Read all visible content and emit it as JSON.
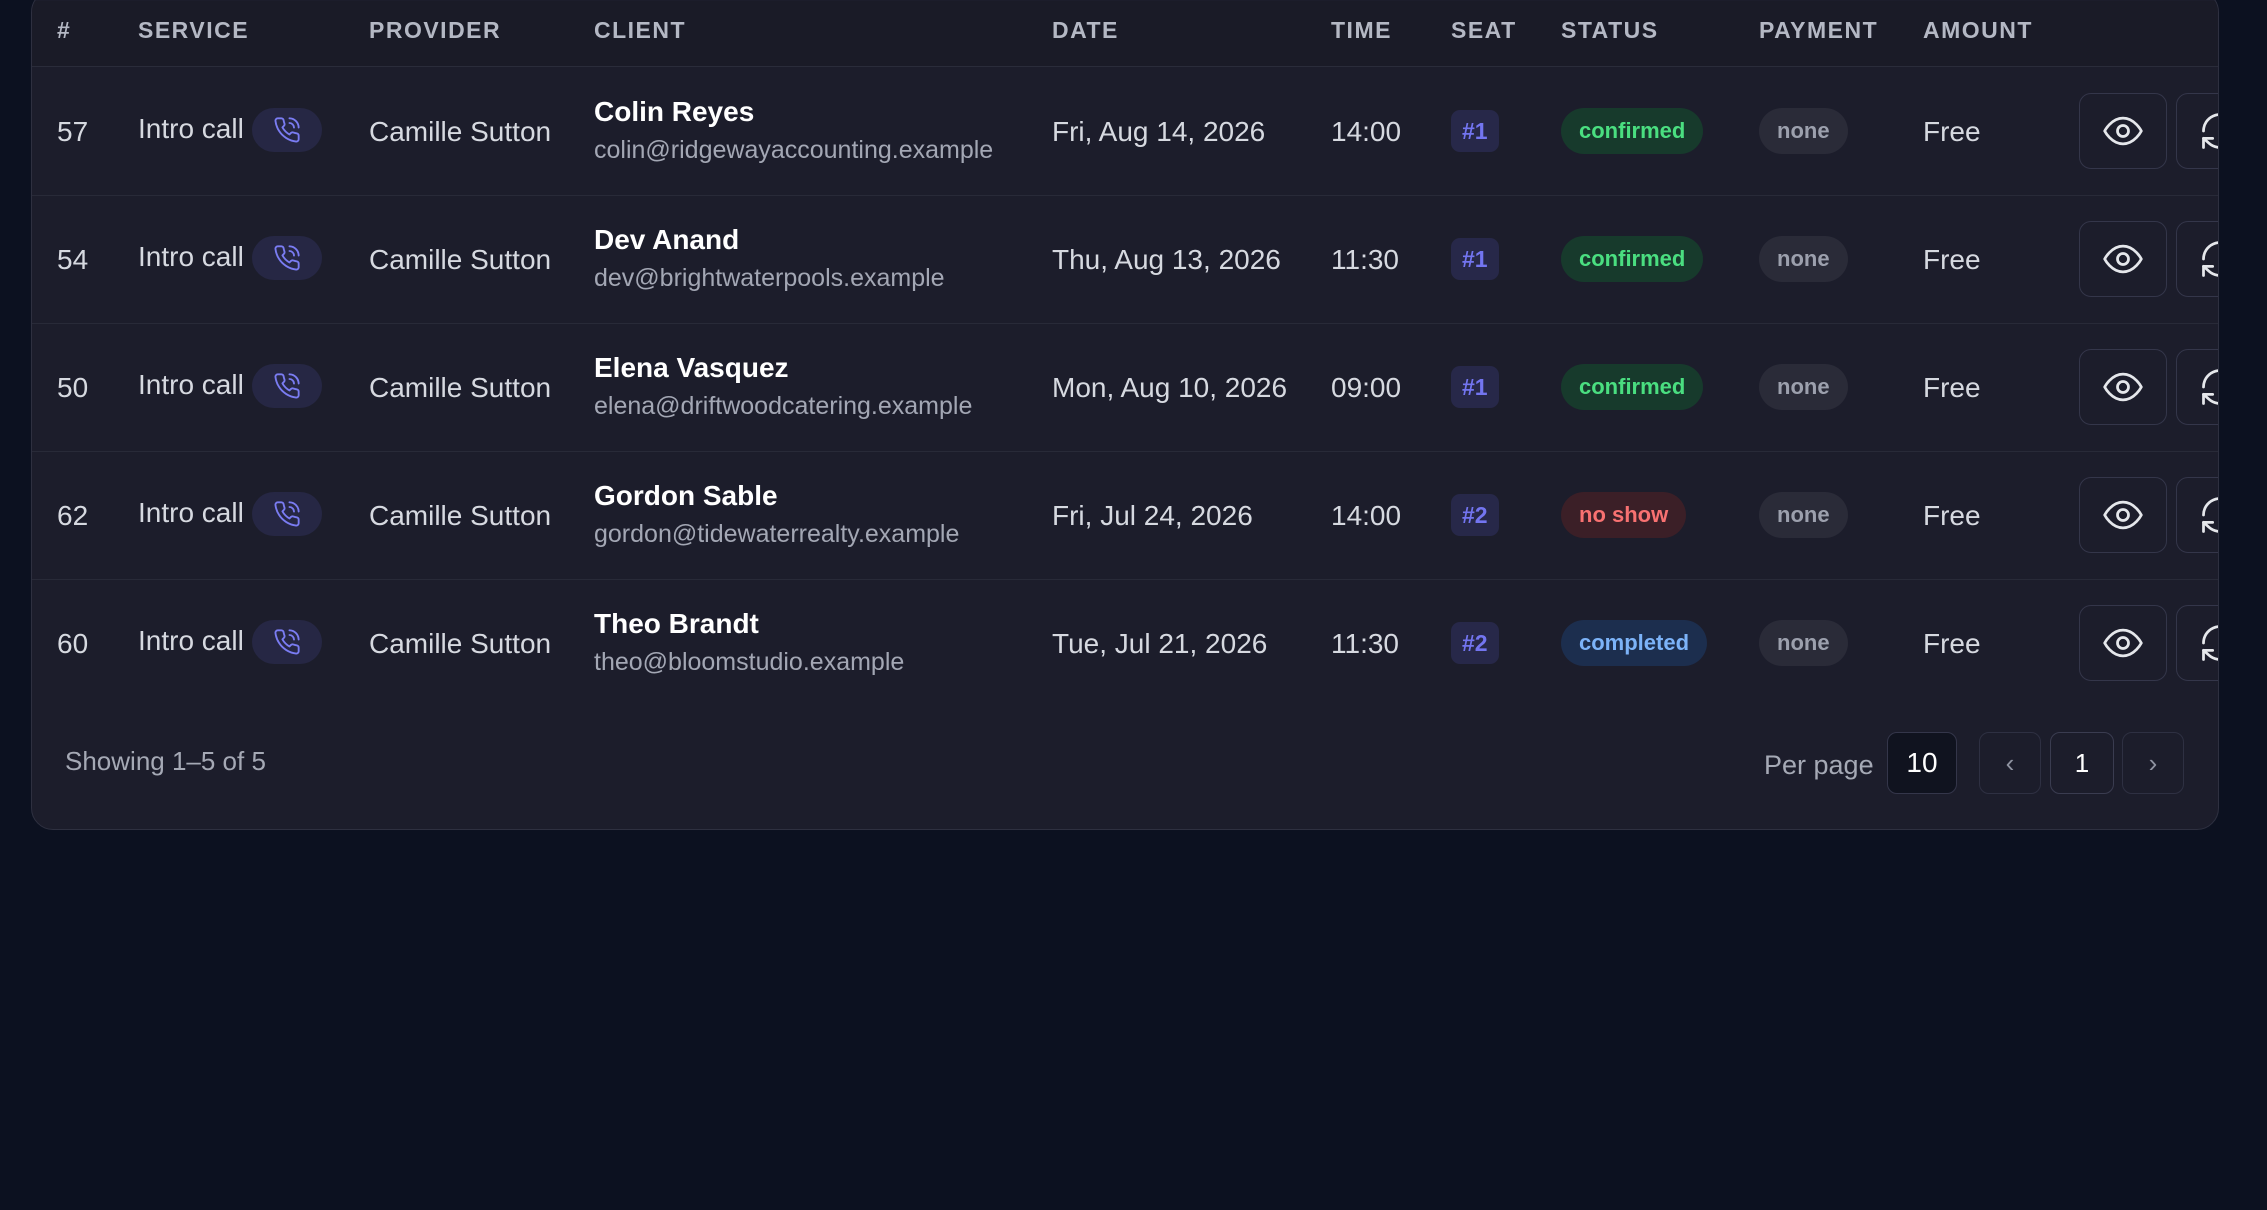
{
  "columns": [
    "#",
    "SERVICE",
    "PROVIDER",
    "CLIENT",
    "DATE",
    "TIME",
    "SEAT",
    "STATUS",
    "PAYMENT",
    "AMOUNT"
  ],
  "rows": [
    {
      "id": "57",
      "service": "Intro call",
      "provider": "Camille Sutton",
      "client_name": "Colin Reyes",
      "client_email": "colin@ridgewayaccounting.example",
      "date": "Fri, Aug 14, 2026",
      "time": "14:00",
      "seat": "#1",
      "status": "confirmed",
      "payment": "none",
      "amount": "Free"
    },
    {
      "id": "54",
      "service": "Intro call",
      "provider": "Camille Sutton",
      "client_name": "Dev Anand",
      "client_email": "dev@brightwaterpools.example",
      "date": "Thu, Aug 13, 2026",
      "time": "11:30",
      "seat": "#1",
      "status": "confirmed",
      "payment": "none",
      "amount": "Free"
    },
    {
      "id": "50",
      "service": "Intro call",
      "provider": "Camille Sutton",
      "client_name": "Elena Vasquez",
      "client_email": "elena@driftwoodcatering.example",
      "date": "Mon, Aug 10, 2026",
      "time": "09:00",
      "seat": "#1",
      "status": "confirmed",
      "payment": "none",
      "amount": "Free"
    },
    {
      "id": "62",
      "service": "Intro call",
      "provider": "Camille Sutton",
      "client_name": "Gordon Sable",
      "client_email": "gordon@tidewaterrealty.example",
      "date": "Fri, Jul 24, 2026",
      "time": "14:00",
      "seat": "#2",
      "status": "no show",
      "payment": "none",
      "amount": "Free"
    },
    {
      "id": "60",
      "service": "Intro call",
      "provider": "Camille Sutton",
      "client_name": "Theo Brandt",
      "client_email": "theo@bloomstudio.example",
      "date": "Tue, Jul 21, 2026",
      "time": "11:30",
      "seat": "#2",
      "status": "completed",
      "payment": "none",
      "amount": "Free"
    }
  ],
  "icons": {
    "service": "phone-call-icon",
    "view": "eye-icon",
    "reschedule": "reschedule-icon",
    "prev": "chevron-left-icon",
    "next": "chevron-right-icon"
  },
  "status_colors": {
    "confirmed": {
      "bg": "#173a2c",
      "fg": "#4ade80"
    },
    "no show": {
      "bg": "#3b1f27",
      "fg": "#f87171"
    },
    "completed": {
      "bg": "#1c2e4e",
      "fg": "#7cb3f8"
    }
  },
  "footer": {
    "showing": "Showing 1–5 of 5",
    "per_page_label": "Per page",
    "per_page_value": "10",
    "prev_label": "‹",
    "current_page": "1",
    "next_label": "›"
  }
}
